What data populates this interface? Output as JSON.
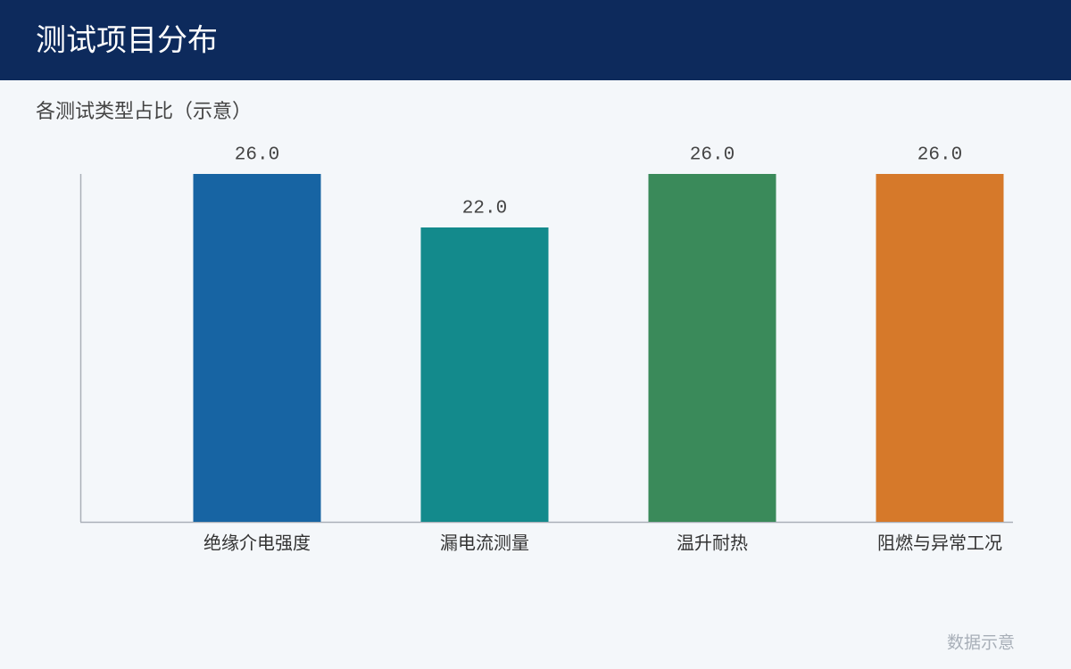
{
  "chart_data": {
    "type": "bar",
    "title": "测试项目分布",
    "subtitle": "各测试类型占比（示意）",
    "note": "数据示意",
    "categories": [
      "绝缘介电强度",
      "漏电流测量",
      "温升耐热",
      "阻燃与异常工况"
    ],
    "values": [
      26,
      22,
      26,
      26
    ],
    "value_labels": [
      "26.0",
      "22.0",
      "26.0",
      "26.0"
    ],
    "colors": [
      "#1764a3",
      "#138a8c",
      "#3a8a5a",
      "#d6792a"
    ],
    "ylim": [
      0,
      26
    ]
  }
}
